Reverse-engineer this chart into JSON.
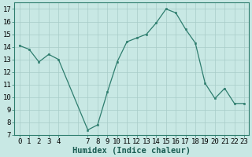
{
  "x": [
    0,
    1,
    2,
    3,
    4,
    7,
    8,
    9,
    10,
    11,
    12,
    13,
    14,
    15,
    16,
    17,
    18,
    19,
    20,
    21,
    22,
    23
  ],
  "y": [
    14.1,
    13.8,
    12.8,
    13.4,
    13.0,
    7.4,
    7.8,
    10.4,
    12.8,
    14.4,
    14.7,
    15.0,
    15.9,
    17.0,
    16.7,
    15.4,
    14.3,
    11.1,
    9.9,
    10.7,
    9.5,
    9.5
  ],
  "line_color": "#2e7d6e",
  "marker_color": "#2e7d6e",
  "bg_color": "#c8e8e4",
  "grid_color": "#a8ccc8",
  "xlabel": "Humidex (Indice chaleur)",
  "xlim": [
    -0.5,
    23.5
  ],
  "ylim": [
    7,
    17.5
  ],
  "yticks": [
    7,
    8,
    9,
    10,
    11,
    12,
    13,
    14,
    15,
    16,
    17
  ],
  "xticks": [
    0,
    1,
    2,
    3,
    4,
    7,
    8,
    9,
    10,
    11,
    12,
    13,
    14,
    15,
    16,
    17,
    18,
    19,
    20,
    21,
    22,
    23
  ],
  "xlabel_fontsize": 7.5,
  "tick_fontsize": 6.5
}
